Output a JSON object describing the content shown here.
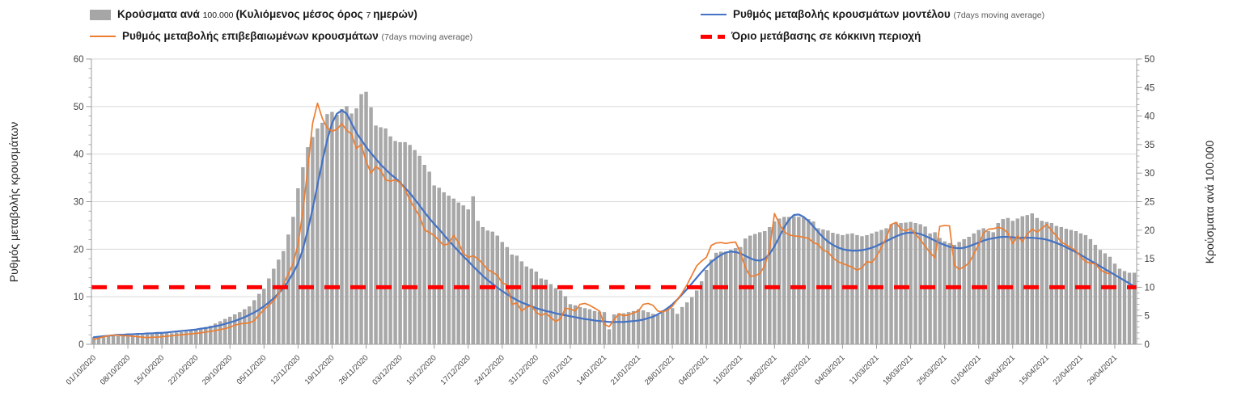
{
  "legend": {
    "items": [
      {
        "id": "cases",
        "marker": "bar",
        "color": "#A6A6A6",
        "segments": [
          {
            "text": "Κρούσματα ανά ",
            "style": "bold"
          },
          {
            "text": "100.000 ",
            "style": "small-dark"
          },
          {
            "text": "(Κυλιόμενος μέσος όρος ",
            "style": "bold"
          },
          {
            "text": "7 ",
            "style": "small-dark"
          },
          {
            "text": "ημερών)",
            "style": "bold"
          }
        ]
      },
      {
        "id": "confirmed",
        "marker": "line",
        "color": "#ED7D31",
        "segments": [
          {
            "text": "Ρυθμός μεταβολής επιβεβαιωμένων κρουσμάτων ",
            "style": "bold"
          },
          {
            "text": "(7days moving average)",
            "style": "small"
          }
        ]
      },
      {
        "id": "model",
        "marker": "line",
        "color": "#4472C4",
        "segments": [
          {
            "text": "Ρυθμός μεταβολής κρουσμάτων μοντέλου ",
            "style": "bold"
          },
          {
            "text": "(7days moving average)",
            "style": "small"
          }
        ]
      },
      {
        "id": "threshold",
        "marker": "dash",
        "color": "#FF0000",
        "segments": [
          {
            "text": "Όριο μετάβασης σε κόκκινη περιοχή",
            "style": "bold"
          }
        ]
      }
    ]
  },
  "chart_data": {
    "type": "combo-bar-line",
    "grid": "horizontal",
    "x": {
      "unit": "day",
      "tick_every_n_days": 7,
      "tick_labels": [
        "01/10/2020",
        "08/10/2020",
        "15/10/2020",
        "22/10/2020",
        "29/10/2020",
        "05/11/2020",
        "12/11/2020",
        "19/11/2020",
        "26/11/2020",
        "03/12/2020",
        "10/12/2020",
        "17/12/2020",
        "24/12/2020",
        "31/12/2020",
        "07/01/2021",
        "14/01/2021",
        "21/01/2021",
        "28/01/2021",
        "04/02/2021",
        "11/02/2021",
        "18/02/2021",
        "25/02/2021",
        "04/03/2021",
        "11/03/2021",
        "18/03/2021",
        "25/03/2021",
        "01/04/2021",
        "08/04/2021",
        "15/04/2021",
        "22/04/2021",
        "29/04/2021"
      ]
    },
    "axes": {
      "left": {
        "title": "Ρυθμός μεταβολής κρουσμάτων",
        "min": 0,
        "max": 60,
        "tick_step": 10,
        "tick_labels": [
          "0",
          "10",
          "20",
          "30",
          "40",
          "50",
          "60"
        ]
      },
      "right": {
        "title": "Κρούσματα ανά 100.000",
        "min": 0,
        "max": 50,
        "tick_step": 5,
        "tick_labels": [
          "0",
          "5",
          "10",
          "15",
          "20",
          "25",
          "30",
          "35",
          "40",
          "45",
          "50"
        ]
      }
    },
    "threshold": {
      "name": "Όριο μετάβασης σε κόκκινη περιοχή",
      "axis": "right",
      "value": 10,
      "color": "#FF0000",
      "style": "dashed"
    },
    "series": [
      {
        "id": "cases_per_100k",
        "name": "Κρούσματα ανά 100.000 (Κυλιόμενος μέσος όρος 7 ημερών)",
        "type": "bar",
        "axis": "right",
        "color": "#A8A8A8",
        "values": [
          1.2,
          1.2,
          1.3,
          1.3,
          1.4,
          1.4,
          1.5,
          1.5,
          1.5,
          1.6,
          1.6,
          1.7,
          1.7,
          1.8,
          1.8,
          1.9,
          1.9,
          2.0,
          2.1,
          2.2,
          2.3,
          2.5,
          2.7,
          3.0,
          3.2,
          3.6,
          4.0,
          4.4,
          4.8,
          5.2,
          5.6,
          6.1,
          6.6,
          7.7,
          8.8,
          9.7,
          11.5,
          13.2,
          14.8,
          16.3,
          19.2,
          22.3,
          27.3,
          31.0,
          34.5,
          36.3,
          37.8,
          38.8,
          40.3,
          40.7,
          40.2,
          41.2,
          41.7,
          40.4,
          41.3,
          43.8,
          44.2,
          41.5,
          38.3,
          38.0,
          37.8,
          36.4,
          35.6,
          35.4,
          35.4,
          34.9,
          34.0,
          33.0,
          31.4,
          30.2,
          27.8,
          27.4,
          26.6,
          26.0,
          25.5,
          24.8,
          24.3,
          23.6,
          25.9,
          21.6,
          20.5,
          19.9,
          19.7,
          19.0,
          17.9,
          17.0,
          15.7,
          15.5,
          14.5,
          13.6,
          13.2,
          12.7,
          11.5,
          11.3,
          10.5,
          9.8,
          9.4,
          8.4,
          7.0,
          6.8,
          6.5,
          6.3,
          6.1,
          5.8,
          5.7,
          5.6,
          2.6,
          5.2,
          5.4,
          5.4,
          5.6,
          5.8,
          6.1,
          5.9,
          5.6,
          5.3,
          5.1,
          5.9,
          6.2,
          6.3,
          5.3,
          6.5,
          7.3,
          8.2,
          9.4,
          11.0,
          13.0,
          14.8,
          16.0,
          16.2,
          16.2,
          16.5,
          16.8,
          17.0,
          18.5,
          19.0,
          19.3,
          19.6,
          19.8,
          20.5,
          21.5,
          22.0,
          22.3,
          22.3,
          22.4,
          22.3,
          22.2,
          21.9,
          21.5,
          20.3,
          20.1,
          19.9,
          19.5,
          19.3,
          19.1,
          19.3,
          19.4,
          19.1,
          18.9,
          19.1,
          19.4,
          19.7,
          20.0,
          20.3,
          21.0,
          21.4,
          21.2,
          21.3,
          21.4,
          21.2,
          21.0,
          20.6,
          19.4,
          19.6,
          18.6,
          18.0,
          17.7,
          17.4,
          17.9,
          18.4,
          18.8,
          19.4,
          20.0,
          20.3,
          19.8,
          19.6,
          21.2,
          21.9,
          22.1,
          21.6,
          22.0,
          22.4,
          22.6,
          22.9,
          22.1,
          21.6,
          21.4,
          21.2,
          20.7,
          20.5,
          20.2,
          20.0,
          19.8,
          19.4,
          19.1,
          18.4,
          17.4,
          16.5,
          15.9,
          15.3,
          14.1,
          13.2,
          12.8,
          12.5,
          12.5
        ]
      },
      {
        "id": "confirmed_rate",
        "name": "Ρυθμός μεταβολής επιβεβαιωμένων κρουσμάτων (7days moving average)",
        "type": "line",
        "axis": "left",
        "color": "#ED7D31",
        "values": [
          1.0,
          1.3,
          1.6,
          1.8,
          1.9,
          1.9,
          1.8,
          1.8,
          1.7,
          1.6,
          1.5,
          1.4,
          1.5,
          1.5,
          1.6,
          1.7,
          1.8,
          1.9,
          2.0,
          2.1,
          2.2,
          2.3,
          2.4,
          2.6,
          2.7,
          2.9,
          3.1,
          3.3,
          3.6,
          4.0,
          4.3,
          4.4,
          4.5,
          5.0,
          6.2,
          7.3,
          8.2,
          9.2,
          10.6,
          12.6,
          14.8,
          17.0,
          21.0,
          28.0,
          37.0,
          46.5,
          50.7,
          47.5,
          45.5,
          44.8,
          45.2,
          46.4,
          45.0,
          44.2,
          41.2,
          42.0,
          38.5,
          36.0,
          37.4,
          36.6,
          34.6,
          34.3,
          34.6,
          34.0,
          32.6,
          30.3,
          28.6,
          26.9,
          24.1,
          23.5,
          22.9,
          21.8,
          20.8,
          21.2,
          22.9,
          21.4,
          19.1,
          18.3,
          18.6,
          18.0,
          16.9,
          15.7,
          15.2,
          14.5,
          12.9,
          12.5,
          8.4,
          8.7,
          7.0,
          7.8,
          8.1,
          6.7,
          6.1,
          6.5,
          5.6,
          4.8,
          5.4,
          7.6,
          7.4,
          7.0,
          8.4,
          8.6,
          8.2,
          7.6,
          7.0,
          4.2,
          3.7,
          5.2,
          6.4,
          6.0,
          6.2,
          6.6,
          7.0,
          8.4,
          8.6,
          8.2,
          7.0,
          6.8,
          7.2,
          8.0,
          9.4,
          10.8,
          12.5,
          14.5,
          16.5,
          17.5,
          18.3,
          20.8,
          21.3,
          21.4,
          21.2,
          21.4,
          21.5,
          19.2,
          16.2,
          14.3,
          14.4,
          14.9,
          16.5,
          20.0,
          27.5,
          25.3,
          23.7,
          23.0,
          22.8,
          22.7,
          22.5,
          22.3,
          21.4,
          21.0,
          19.8,
          19.4,
          18.2,
          17.4,
          17.0,
          16.6,
          16.2,
          15.6,
          16.1,
          17.4,
          17.2,
          18.5,
          20.4,
          22.4,
          25.2,
          25.6,
          24.2,
          23.8,
          24.4,
          23.2,
          22.0,
          20.6,
          19.3,
          18.2,
          24.8,
          25.0,
          24.9,
          16.6,
          15.8,
          16.3,
          17.1,
          19.0,
          21.0,
          23.4,
          24.2,
          24.3,
          24.6,
          24.3,
          23.4,
          21.2,
          22.8,
          21.6,
          23.2,
          24.2,
          23.6,
          24.4,
          25.2,
          23.9,
          22.8,
          21.5,
          20.9,
          20.3,
          19.7,
          18.4,
          17.4,
          17.1,
          16.9,
          15.7,
          15.1,
          14.8,
          null,
          null,
          null,
          null,
          null
        ]
      },
      {
        "id": "model_rate",
        "name": "Ρυθμός μεταβολής κρουσμάτων μοντέλου (7days moving average)",
        "type": "line",
        "axis": "left",
        "color": "#4472C4",
        "values": [
          1.5,
          1.6,
          1.7,
          1.8,
          1.9,
          2.0,
          2.0,
          2.1,
          2.1,
          2.2,
          2.2,
          2.3,
          2.3,
          2.4,
          2.4,
          2.5,
          2.6,
          2.7,
          2.8,
          2.9,
          3.0,
          3.1,
          3.3,
          3.4,
          3.6,
          3.8,
          4.0,
          4.3,
          4.6,
          4.9,
          5.3,
          5.7,
          6.2,
          6.7,
          7.3,
          8.0,
          8.8,
          9.7,
          10.7,
          11.9,
          13.3,
          15.0,
          17.0,
          20.0,
          24.0,
          28.5,
          33.5,
          38.5,
          43.0,
          46.5,
          48.5,
          49.2,
          48.5,
          46.5,
          44.5,
          43.0,
          41.5,
          40.2,
          39.0,
          37.8,
          36.8,
          35.8,
          35.0,
          34.0,
          32.9,
          31.8,
          30.5,
          29.2,
          27.8,
          26.5,
          25.3,
          24.2,
          23.0,
          21.8,
          20.7,
          19.6,
          18.5,
          17.5,
          16.4,
          15.4,
          14.4,
          13.5,
          12.7,
          11.9,
          11.2,
          10.5,
          9.9,
          9.3,
          8.8,
          8.4,
          8.0,
          7.6,
          7.3,
          7.0,
          6.8,
          6.5,
          6.3,
          6.1,
          5.9,
          5.7,
          5.5,
          5.3,
          5.2,
          5.0,
          4.9,
          4.8,
          4.7,
          4.7,
          4.7,
          4.7,
          4.8,
          4.9,
          5.0,
          5.2,
          5.5,
          5.8,
          6.3,
          6.9,
          7.6,
          8.4,
          9.4,
          10.5,
          11.6,
          12.8,
          14.0,
          15.2,
          16.3,
          17.3,
          18.1,
          18.8,
          19.3,
          19.5,
          19.4,
          19.1,
          18.6,
          18.1,
          17.7,
          17.6,
          18.0,
          19.0,
          20.6,
          22.6,
          24.6,
          26.2,
          27.2,
          27.3,
          26.8,
          25.9,
          24.8,
          23.6,
          22.5,
          21.6,
          20.9,
          20.4,
          20.0,
          19.8,
          19.7,
          19.7,
          19.8,
          20.0,
          20.3,
          20.7,
          21.2,
          21.7,
          22.2,
          22.7,
          23.1,
          23.4,
          23.5,
          23.4,
          23.2,
          22.8,
          22.3,
          21.8,
          21.3,
          20.9,
          20.5,
          20.3,
          20.2,
          20.3,
          20.6,
          21.0,
          21.4,
          21.8,
          22.1,
          22.3,
          22.5,
          22.6,
          22.6,
          22.5,
          22.4,
          22.4,
          22.4,
          22.4,
          22.3,
          22.2,
          22.0,
          21.7,
          21.3,
          20.9,
          20.4,
          19.9,
          19.4,
          18.8,
          18.2,
          17.6,
          17.0,
          16.4,
          15.8,
          15.2,
          14.6,
          14.0,
          13.4,
          12.8,
          12.1
        ]
      }
    ]
  }
}
